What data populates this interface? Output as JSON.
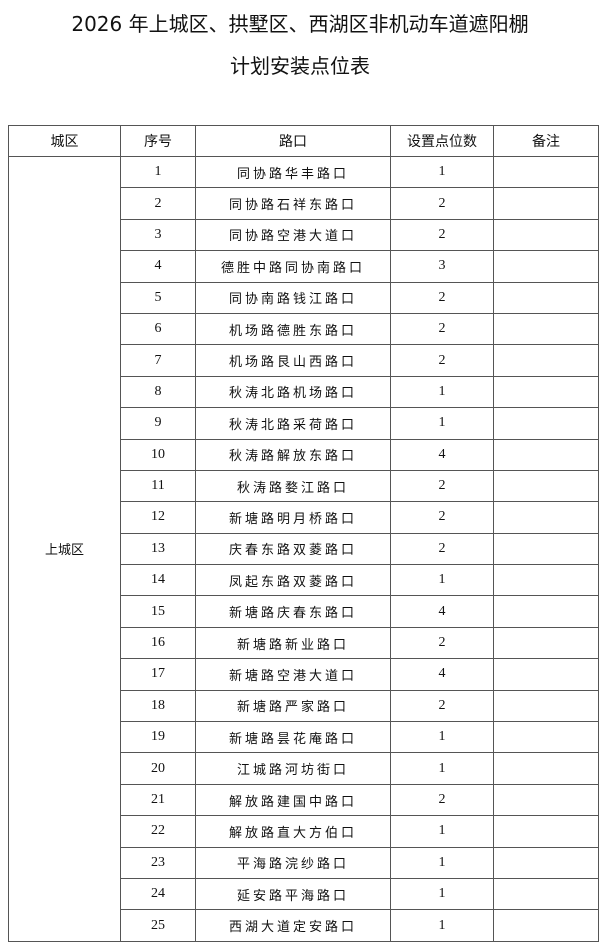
{
  "title": {
    "line1": "2026 年上城区、拱墅区、西湖区非机动车道遮阳棚",
    "line2": "计划安装点位表"
  },
  "table": {
    "headers": [
      "城区",
      "序号",
      "路口",
      "设置点位数",
      "备注"
    ],
    "district": "上城区",
    "rows": [
      {
        "no": "1",
        "road": "同协路华丰路口",
        "count": "1",
        "note": ""
      },
      {
        "no": "2",
        "road": "同协路石祥东路口",
        "count": "2",
        "note": ""
      },
      {
        "no": "3",
        "road": "同协路空港大道口",
        "count": "2",
        "note": ""
      },
      {
        "no": "4",
        "road": "德胜中路同协南路口",
        "count": "3",
        "note": ""
      },
      {
        "no": "5",
        "road": "同协南路钱江路口",
        "count": "2",
        "note": ""
      },
      {
        "no": "6",
        "road": "机场路德胜东路口",
        "count": "2",
        "note": ""
      },
      {
        "no": "7",
        "road": "机场路艮山西路口",
        "count": "2",
        "note": ""
      },
      {
        "no": "8",
        "road": "秋涛北路机场路口",
        "count": "1",
        "note": ""
      },
      {
        "no": "9",
        "road": "秋涛北路采荷路口",
        "count": "1",
        "note": ""
      },
      {
        "no": "10",
        "road": "秋涛路解放东路口",
        "count": "4",
        "note": ""
      },
      {
        "no": "11",
        "road": "秋涛路婺江路口",
        "count": "2",
        "note": ""
      },
      {
        "no": "12",
        "road": "新塘路明月桥路口",
        "count": "2",
        "note": ""
      },
      {
        "no": "13",
        "road": "庆春东路双菱路口",
        "count": "2",
        "note": ""
      },
      {
        "no": "14",
        "road": "凤起东路双菱路口",
        "count": "1",
        "note": ""
      },
      {
        "no": "15",
        "road": "新塘路庆春东路口",
        "count": "4",
        "note": ""
      },
      {
        "no": "16",
        "road": "新塘路新业路口",
        "count": "2",
        "note": ""
      },
      {
        "no": "17",
        "road": "新塘路空港大道口",
        "count": "4",
        "note": ""
      },
      {
        "no": "18",
        "road": "新塘路严家路口",
        "count": "2",
        "note": ""
      },
      {
        "no": "19",
        "road": "新塘路昙花庵路口",
        "count": "1",
        "note": ""
      },
      {
        "no": "20",
        "road": "江城路河坊街口",
        "count": "1",
        "note": ""
      },
      {
        "no": "21",
        "road": "解放路建国中路口",
        "count": "2",
        "note": ""
      },
      {
        "no": "22",
        "road": "解放路直大方伯口",
        "count": "1",
        "note": ""
      },
      {
        "no": "23",
        "road": "平海路浣纱路口",
        "count": "1",
        "note": ""
      },
      {
        "no": "24",
        "road": "延安路平海路口",
        "count": "1",
        "note": ""
      },
      {
        "no": "25",
        "road": "西湖大道定安路口",
        "count": "1",
        "note": ""
      }
    ]
  }
}
